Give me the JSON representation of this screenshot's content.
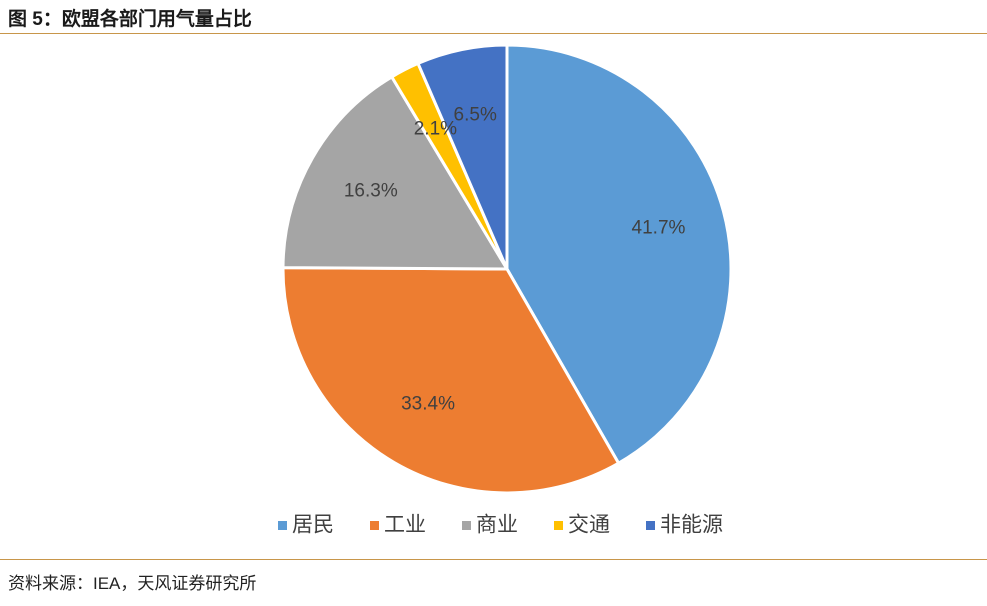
{
  "figure": {
    "title": "图 5：欧盟各部门用气量占比",
    "source": "资料来源：IEA，天风证券研究所"
  },
  "chart_data": {
    "type": "pie",
    "categories": [
      "居民",
      "工业",
      "商业",
      "交通",
      "非能源"
    ],
    "values": [
      41.7,
      33.4,
      16.3,
      2.1,
      6.5
    ],
    "labels": [
      "41.7%",
      "33.4%",
      "16.3%",
      "2.1%",
      "6.5%"
    ],
    "colors": [
      "#5b9bd5",
      "#ed7d31",
      "#a5a5a5",
      "#ffc000",
      "#4472c4"
    ],
    "start_angle": "12 o'clock",
    "direction": "clockwise",
    "legend_position": "bottom"
  }
}
